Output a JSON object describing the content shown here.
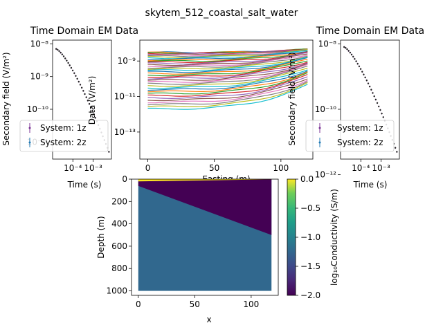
{
  "figure_title": "skytem_512_coastal_salt_water",
  "chart_data": [
    {
      "name": "left-sounding",
      "type": "scatter",
      "title": "Time Domain EM Data",
      "xlabel": "Time (s)",
      "ylabel": "Secondary field",
      "ylabel_unit": "(V/m²)",
      "xscale": "log",
      "yscale": "log",
      "xlim": [
        1e-05,
        0.008
      ],
      "ylim": [
        3e-12,
        1.3e-08
      ],
      "x_ticks": [
        "10⁻⁴",
        "10⁻³"
      ],
      "y_ticks": [
        "10⁻⁸",
        "10⁻⁹",
        "10⁻¹⁰",
        "10⁻¹¹"
      ],
      "legend": [
        "System: 1z",
        "System: 2z"
      ],
      "legend_colors": [
        "#7b3294",
        "#1f78b4"
      ],
      "series": [
        {
          "t_start": 1.5e-05,
          "t_end": 0.006,
          "v_start": 7e-09,
          "v_end": 5e-12
        }
      ]
    },
    {
      "name": "center-profiles",
      "type": "line",
      "title": "",
      "xlabel": "Easting (m)",
      "ylabel": "Data",
      "ylabel_unit": "(V/m²)",
      "yscale": "log",
      "xlim": [
        -6,
        124
      ],
      "ylim": [
        3e-15,
        1.5e-08
      ],
      "x_ticks": [
        "0",
        "50",
        "100"
      ],
      "y_ticks": [
        "10⁻⁹",
        "10⁻¹¹",
        "10⁻¹³"
      ],
      "n_lines": 40,
      "top_value": 3e-09,
      "bottom_value": 2e-12,
      "colors": [
        "#1f77b4",
        "#ff7f0e",
        "#2ca02c",
        "#d62728",
        "#9467bd",
        "#8c564b",
        "#e377c2",
        "#7f7f7f",
        "#bcbd22",
        "#17becf"
      ]
    },
    {
      "name": "right-sounding",
      "type": "scatter",
      "title": "Time Domain EM Data",
      "xlabel": "Time (s)",
      "ylabel": "Secondary field",
      "ylabel_unit": "(V/m²)",
      "xscale": "log",
      "yscale": "log",
      "xlim": [
        1e-05,
        0.008
      ],
      "ylim": [
        3e-12,
        1.3e-08
      ],
      "x_ticks": [
        "10⁻⁴",
        "10⁻³"
      ],
      "y_ticks": [
        "10⁻⁸",
        "10⁻¹⁰",
        "10⁻¹²"
      ],
      "legend": [
        "System: 1z",
        "System: 2z"
      ],
      "legend_colors": [
        "#7b3294",
        "#1f78b4"
      ],
      "series": [
        {
          "t_start": 1.5e-05,
          "t_end": 0.006,
          "v_start": 8e-09,
          "v_end": 5e-12
        }
      ]
    },
    {
      "name": "conductivity-model",
      "type": "heatmap",
      "title": "",
      "xlabel": "x",
      "ylabel": "Depth (m)",
      "xlim": [
        -6,
        124
      ],
      "ylim": [
        1040,
        0
      ],
      "x_ticks": [
        "0",
        "50",
        "100"
      ],
      "y_ticks": [
        "0",
        "200",
        "400",
        "600",
        "800",
        "1000"
      ],
      "model": {
        "x_range": [
          0,
          118
        ],
        "depth_max": 1000,
        "thin_layer_depth": 20,
        "interface_depth_at_x0": 60,
        "interface_depth_at_xmax": 500,
        "colors": {
          "surface_layer": "#fde725",
          "salt_water": "#440154",
          "host": "#31688e"
        }
      },
      "colorbar": {
        "label": "log₁₀Conductivity",
        "unit": "(S/m)",
        "range": [
          -2.0,
          0.0
        ],
        "ticks": [
          "0.0",
          "−0.5",
          "−1.0",
          "−1.5",
          "−2.0"
        ]
      }
    }
  ]
}
